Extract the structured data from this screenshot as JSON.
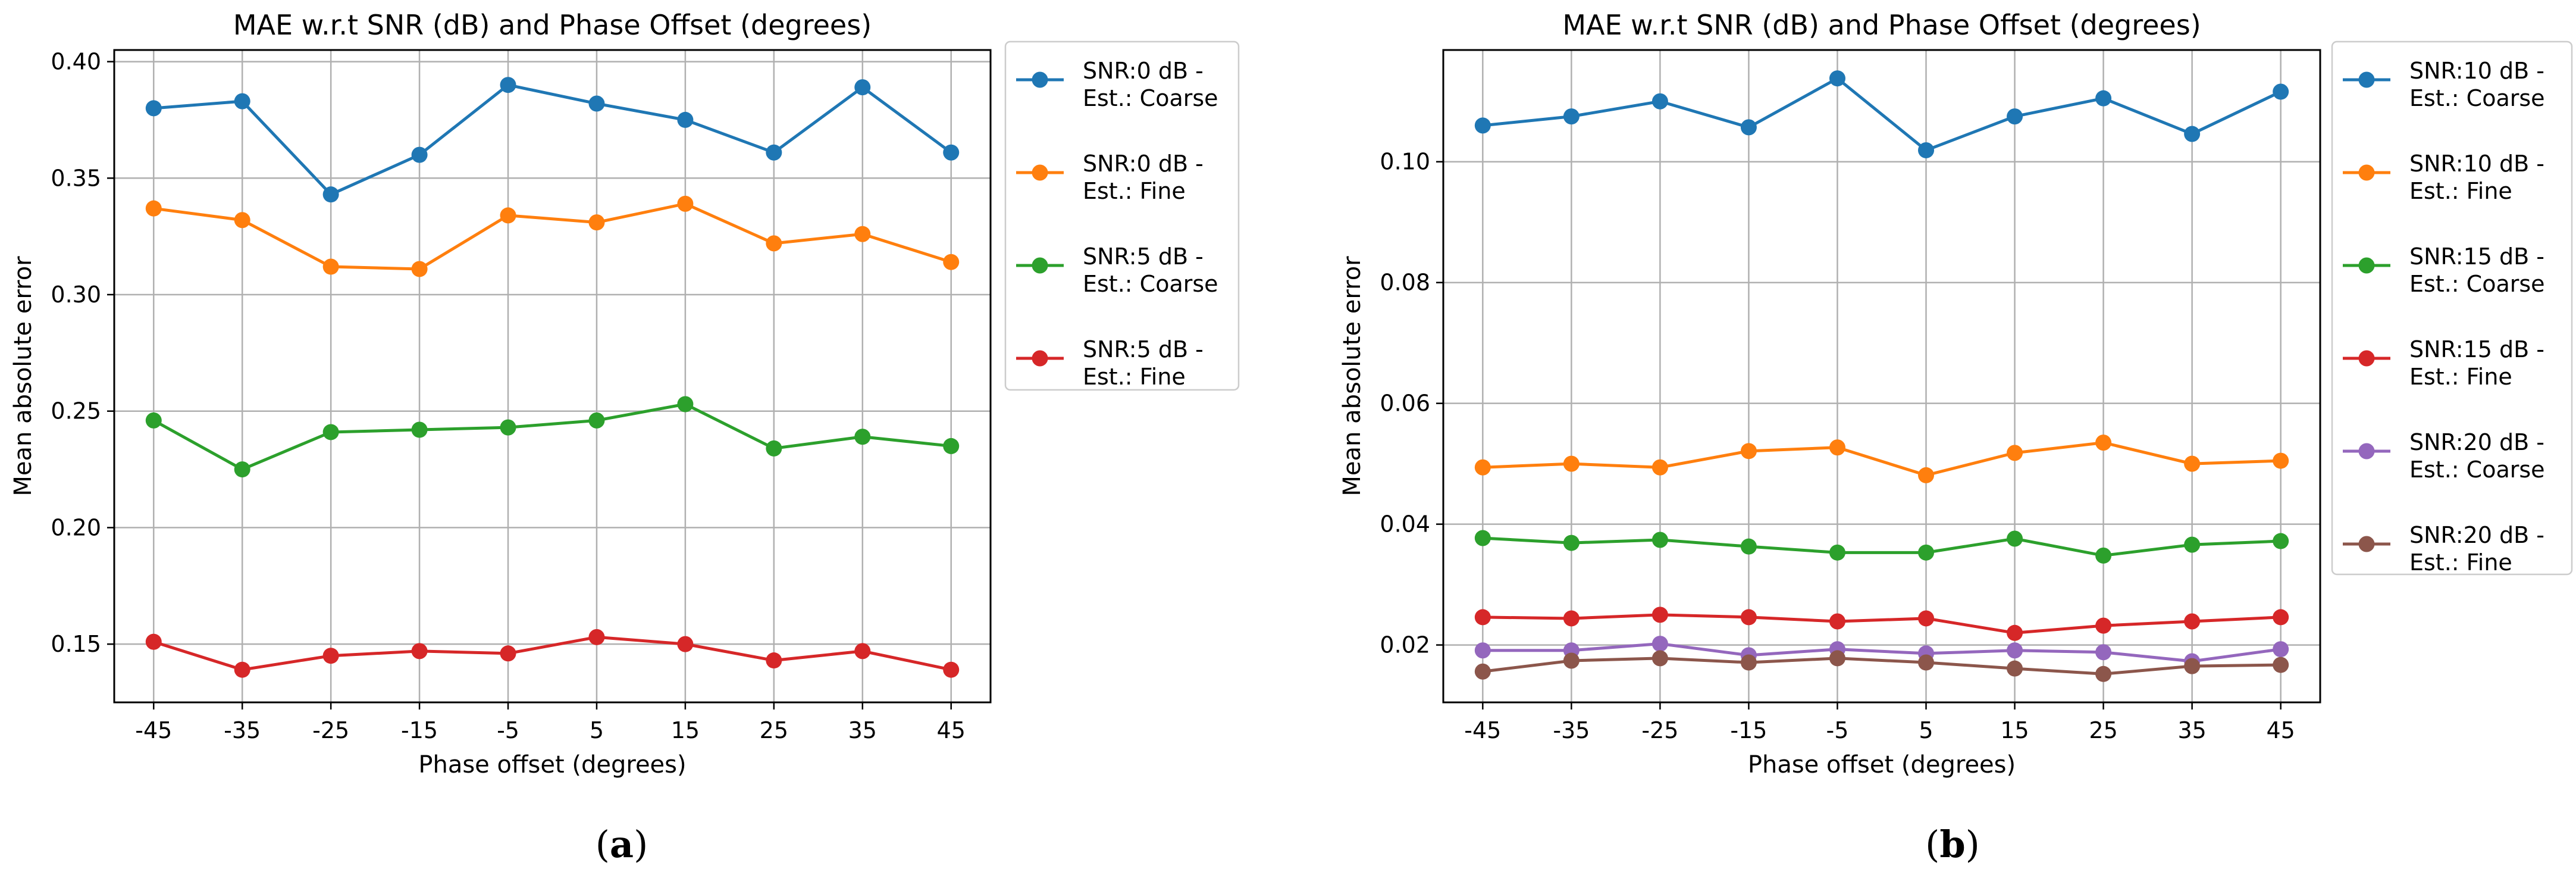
{
  "chart_data": [
    {
      "type": "line",
      "title": "MAE w.r.t SNR (dB) and Phase Offset (degrees)",
      "xlabel": "Phase offset (degrees)",
      "ylabel": "Mean absolute error",
      "caption_open": "(",
      "caption_letter": "a",
      "caption_close": ")",
      "categories": [
        "-45",
        "-35",
        "-25",
        "-15",
        "-5",
        "5",
        "15",
        "25",
        "35",
        "45"
      ],
      "ylim": [
        0.125,
        0.405
      ],
      "yticks": [
        0.15,
        0.2,
        0.25,
        0.3,
        0.35,
        0.4
      ],
      "ytick_labels": [
        "0.15",
        "0.20",
        "0.25",
        "0.30",
        "0.35",
        "0.40"
      ],
      "grid": true,
      "legend_position": "outside-right",
      "series": [
        {
          "name_line1": "SNR:0 dB -",
          "name_line2": "Est.: Coarse",
          "color": "#1f77b4",
          "values": [
            0.38,
            0.383,
            0.343,
            0.36,
            0.39,
            0.382,
            0.375,
            0.361,
            0.389,
            0.361
          ]
        },
        {
          "name_line1": "SNR:0 dB -",
          "name_line2": "Est.: Fine",
          "color": "#ff7f0e",
          "values": [
            0.337,
            0.332,
            0.312,
            0.311,
            0.334,
            0.331,
            0.339,
            0.322,
            0.326,
            0.314
          ]
        },
        {
          "name_line1": "SNR:5 dB -",
          "name_line2": "Est.: Coarse",
          "color": "#2ca02c",
          "values": [
            0.246,
            0.225,
            0.241,
            0.242,
            0.243,
            0.246,
            0.253,
            0.234,
            0.239,
            0.235
          ]
        },
        {
          "name_line1": "SNR:5 dB -",
          "name_line2": "Est.: Fine",
          "color": "#d62728",
          "values": [
            0.151,
            0.139,
            0.145,
            0.147,
            0.146,
            0.153,
            0.15,
            0.143,
            0.147,
            0.139
          ]
        }
      ]
    },
    {
      "type": "line",
      "title": "MAE w.r.t SNR (dB) and Phase Offset (degrees)",
      "xlabel": "Phase offset (degrees)",
      "ylabel": "Mean absolute error",
      "caption_open": "(",
      "caption_letter": "b",
      "caption_close": ")",
      "categories": [
        "-45",
        "-35",
        "-25",
        "-15",
        "-5",
        "5",
        "15",
        "25",
        "35",
        "45"
      ],
      "ylim": [
        0.0105,
        0.1185
      ],
      "yticks": [
        0.02,
        0.04,
        0.06,
        0.08,
        0.1
      ],
      "ytick_labels": [
        "0.02",
        "0.04",
        "0.06",
        "0.08",
        "0.10"
      ],
      "grid": true,
      "legend_position": "outside-right",
      "series": [
        {
          "name_line1": "SNR:10 dB -",
          "name_line2": "Est.: Coarse",
          "color": "#1f77b4",
          "values": [
            0.106,
            0.1075,
            0.11,
            0.1057,
            0.1138,
            0.1019,
            0.1075,
            0.1105,
            0.1046,
            0.1116
          ]
        },
        {
          "name_line1": "SNR:10 dB -",
          "name_line2": "Est.: Fine",
          "color": "#ff7f0e",
          "values": [
            0.0494,
            0.05,
            0.0494,
            0.0521,
            0.0527,
            0.0481,
            0.0518,
            0.0535,
            0.05,
            0.0505
          ]
        },
        {
          "name_line1": "SNR:15 dB -",
          "name_line2": "Est.: Coarse",
          "color": "#2ca02c",
          "values": [
            0.0377,
            0.0369,
            0.0374,
            0.0363,
            0.0353,
            0.0353,
            0.0376,
            0.0348,
            0.0366,
            0.0372
          ]
        },
        {
          "name_line1": "SNR:15 dB -",
          "name_line2": "Est.: Fine",
          "color": "#d62728",
          "values": [
            0.0246,
            0.0244,
            0.025,
            0.0246,
            0.0239,
            0.0244,
            0.022,
            0.0232,
            0.0239,
            0.0246
          ]
        },
        {
          "name_line1": "SNR:20 dB -",
          "name_line2": "Est.: Coarse",
          "color": "#9467bd",
          "values": [
            0.0191,
            0.0191,
            0.0202,
            0.0183,
            0.0193,
            0.0186,
            0.0191,
            0.0188,
            0.0173,
            0.0193
          ]
        },
        {
          "name_line1": "SNR:20 dB -",
          "name_line2": "Est.: Fine",
          "color": "#8c564b",
          "values": [
            0.0156,
            0.0174,
            0.0178,
            0.0171,
            0.0178,
            0.0171,
            0.0161,
            0.0152,
            0.0165,
            0.0167
          ]
        }
      ]
    }
  ]
}
